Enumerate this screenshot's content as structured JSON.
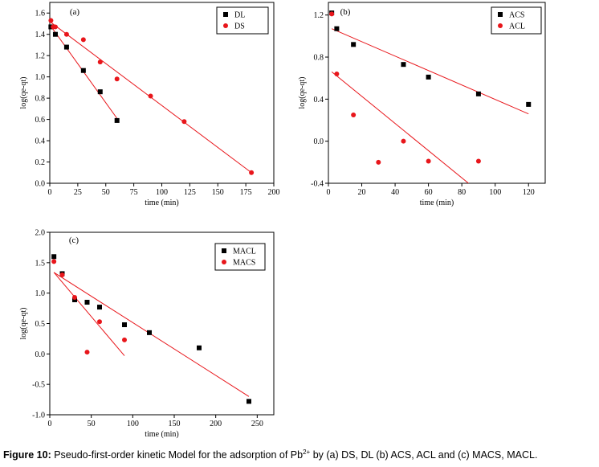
{
  "colors": {
    "black_series": "#000000",
    "red_series": "#e8161b",
    "fit_line": "#e8161b"
  },
  "caption": {
    "label": "Figure 10:",
    "text_before": " Pseudo-first-order kinetic Model for the adsorption of Pb",
    "superscript": "2+",
    "text_after": " by (a) DS, DL (b) ACS, ACL and (c) MACS, MACL."
  },
  "chart_data": [
    {
      "panel": "(a)",
      "type": "scatter",
      "xlabel": "time (min)",
      "ylabel": "log(qe-qt)",
      "xlim": [
        0,
        200
      ],
      "ylim": [
        0,
        1.7
      ],
      "xticks": [
        0,
        25,
        50,
        75,
        100,
        125,
        150,
        175,
        200
      ],
      "yticks": [
        "0.0",
        "0.2",
        "0.4",
        "0.6",
        "0.8",
        "1.0",
        "1.2",
        "1.4",
        "1.6"
      ],
      "legend_position": "top-right",
      "series": [
        {
          "name": "DL",
          "marker": "square",
          "color": "#000000",
          "x": [
            1,
            5,
            15,
            30,
            45,
            60
          ],
          "y": [
            1.47,
            1.4,
            1.28,
            1.06,
            0.86,
            0.59
          ],
          "fit": [
            [
              0,
              1.49
            ],
            [
              60,
              0.61
            ]
          ]
        },
        {
          "name": "DS",
          "marker": "circle",
          "color": "#e8161b",
          "x": [
            1,
            3,
            5,
            15,
            30,
            45,
            60,
            90,
            120,
            180
          ],
          "y": [
            1.53,
            1.47,
            1.47,
            1.4,
            1.35,
            1.14,
            0.98,
            0.82,
            0.58,
            0.1
          ],
          "fit": [
            [
              0,
              1.52
            ],
            [
              180,
              0.1
            ]
          ]
        }
      ]
    },
    {
      "panel": "(b)",
      "type": "scatter",
      "xlabel": "time (min)",
      "ylabel": "log(qe-qt)",
      "xlim": [
        0,
        130
      ],
      "ylim": [
        -0.4,
        1.32
      ],
      "xticks": [
        0,
        20,
        40,
        60,
        80,
        100,
        120
      ],
      "yticks": [
        "-0.4",
        "0.0",
        "0.4",
        "0.8",
        "1.2"
      ],
      "legend_position": "top-right",
      "series": [
        {
          "name": "ACS",
          "marker": "square",
          "color": "#000000",
          "x": [
            2,
            5,
            15,
            45,
            60,
            90,
            120
          ],
          "y": [
            1.22,
            1.07,
            0.92,
            0.73,
            0.61,
            0.45,
            0.35
          ],
          "fit": [
            [
              2,
              1.07
            ],
            [
              120,
              0.26
            ]
          ]
        },
        {
          "name": "ACL",
          "marker": "circle",
          "color": "#e8161b",
          "x": [
            2,
            5,
            15,
            30,
            45,
            60,
            90
          ],
          "y": [
            1.21,
            0.64,
            0.25,
            -0.2,
            0.0,
            -0.19,
            -0.19
          ],
          "fit": [
            [
              2,
              0.66
            ],
            [
              84,
              -0.4
            ]
          ]
        }
      ]
    },
    {
      "panel": "(c)",
      "type": "scatter",
      "xlabel": "time (min)",
      "ylabel": "log(qe-qt)",
      "xlim": [
        0,
        270
      ],
      "ylim": [
        -1.0,
        2.0
      ],
      "xticks": [
        0,
        50,
        100,
        150,
        200,
        250
      ],
      "yticks": [
        "-1.0",
        "-0.5",
        "0.0",
        "0.5",
        "1.0",
        "1.5",
        "2.0"
      ],
      "legend_position": "top-right",
      "series": [
        {
          "name": "MACL",
          "marker": "square",
          "color": "#000000",
          "x": [
            5,
            15,
            30,
            45,
            60,
            90,
            120,
            180,
            240
          ],
          "y": [
            1.6,
            1.32,
            0.89,
            0.85,
            0.77,
            0.48,
            0.35,
            0.1,
            -0.78
          ],
          "fit": [
            [
              5,
              1.34
            ],
            [
              240,
              -0.7
            ]
          ]
        },
        {
          "name": "MACS",
          "marker": "circle",
          "color": "#e8161b",
          "x": [
            5,
            15,
            30,
            45,
            60,
            90
          ],
          "y": [
            1.52,
            1.3,
            0.93,
            0.03,
            0.53,
            0.23
          ],
          "fit": [
            [
              5,
              1.34
            ],
            [
              90,
              -0.03
            ]
          ]
        }
      ]
    }
  ]
}
